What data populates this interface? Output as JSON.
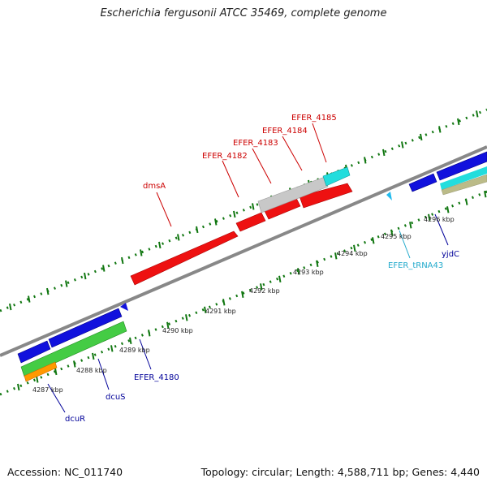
{
  "title": "Escherichia fergusonii ATCC 35469, complete genome",
  "footer": {
    "accession": "Accession: NC_011740",
    "summary": "Topology: circular; Length: 4,588,711 bp; Genes: 4,440"
  },
  "colors": {
    "forward_cds": "#ee1111",
    "forward_label": "#cc0000",
    "reverse_cds": "#1111dd",
    "reverse_label": "#000099",
    "trna": "#22dddd",
    "trna_label": "#22aacc",
    "pseudo": "#c8c8c8",
    "rrna_green": "#44cc44",
    "orange": "#ff9900",
    "olive": "#bbbb88",
    "backbone": "#888888",
    "ticks": "#117711"
  },
  "kbp_labels": [
    "4287 kbp",
    "4288 kbp",
    "4289 kbp",
    "4290 kbp",
    "4291 kbp",
    "4292 kbp",
    "4293 kbp",
    "4294 kbp",
    "4295 kbp",
    "4296 kbp"
  ],
  "forward_labels": [
    "dmsA",
    "EFER_4182",
    "EFER_4183",
    "EFER_4184",
    "EFER_4185"
  ],
  "reverse_labels": [
    "dcuR",
    "dcuS",
    "EFER_4180",
    "EFER_tRNA43",
    "yjdC"
  ]
}
